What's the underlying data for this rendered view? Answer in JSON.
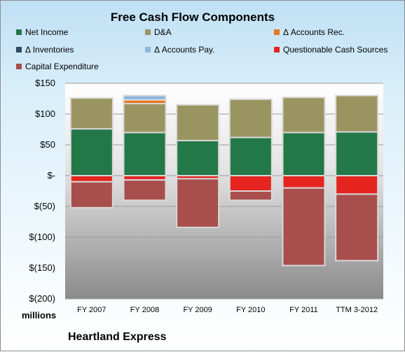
{
  "chart_data": {
    "type": "bar",
    "stacked": true,
    "title": "Free Cash Flow Components",
    "categories": [
      "FY 2007",
      "FY 2008",
      "FY 2009",
      "FY 2010",
      "FY 2011",
      "TTM 3-2012"
    ],
    "series": [
      {
        "name": "Net Income",
        "color": "#237847",
        "values": [
          76,
          70,
          57,
          62,
          70,
          71
        ]
      },
      {
        "name": "D&A",
        "color": "#9a9460",
        "values": [
          50,
          47,
          58,
          62,
          57,
          59
        ]
      },
      {
        "name": "Δ Accounts Rec.",
        "color": "#e9751c",
        "values": [
          0,
          6,
          0,
          0,
          0,
          0
        ]
      },
      {
        "name": "Δ Inventories",
        "color": "#2f4a60",
        "values": [
          0,
          0,
          0,
          0,
          0,
          0
        ]
      },
      {
        "name": "Δ Accounts Pay.",
        "color": "#8fb6dc",
        "values": [
          0,
          7,
          0,
          0,
          0,
          0
        ]
      },
      {
        "name": "Questionable Cash Sources",
        "color": "#e52420",
        "values": [
          -10,
          -7,
          -5,
          -25,
          -20,
          -30
        ]
      },
      {
        "name": "Capital Expenditure",
        "color": "#a84e4c",
        "values": [
          -42,
          -33,
          -79,
          -15,
          -126,
          -108
        ]
      }
    ],
    "y_ticks": [
      "$150",
      "$100",
      "$50",
      "$-",
      "$(50)",
      "$(100)",
      "$(150)",
      "$(200)"
    ],
    "ylim": [
      -200,
      150
    ],
    "units_label": "millions",
    "legend_position": "top"
  },
  "footer": {
    "company": "Heartland Express"
  }
}
